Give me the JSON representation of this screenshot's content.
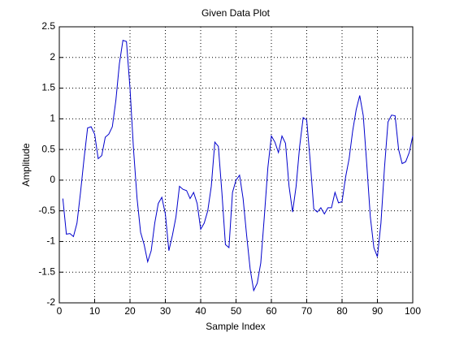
{
  "chart_data": {
    "type": "line",
    "title": "Given Data Plot",
    "x_label": "Sample Index",
    "y_label": "Amplitude",
    "x": [
      1,
      2,
      3,
      4,
      5,
      6,
      7,
      8,
      9,
      10,
      11,
      12,
      13,
      14,
      15,
      16,
      17,
      18,
      19,
      20,
      21,
      22,
      23,
      24,
      25,
      26,
      27,
      28,
      29,
      30,
      31,
      32,
      33,
      34,
      35,
      36,
      37,
      38,
      39,
      40,
      41,
      42,
      43,
      44,
      45,
      46,
      47,
      48,
      49,
      50,
      51,
      52,
      53,
      54,
      55,
      56,
      57,
      58,
      59,
      60,
      61,
      62,
      63,
      64,
      65,
      66,
      67,
      68,
      69,
      70,
      71,
      72,
      73,
      74,
      75,
      76,
      77,
      78,
      79,
      80,
      81,
      82,
      83,
      84,
      85,
      86,
      87,
      88,
      89,
      90,
      91,
      92,
      93,
      94,
      95,
      96,
      97,
      98,
      99,
      100
    ],
    "series": [
      {
        "color": "#0000cc",
        "values": [
          -0.3,
          -0.88,
          -0.87,
          -0.92,
          -0.7,
          -0.2,
          0.35,
          0.85,
          0.87,
          0.75,
          0.35,
          0.4,
          0.7,
          0.75,
          0.87,
          1.3,
          1.9,
          2.28,
          2.26,
          1.5,
          0.5,
          -0.3,
          -0.85,
          -1.05,
          -1.33,
          -1.15,
          -0.7,
          -0.38,
          -0.28,
          -0.55,
          -1.15,
          -0.9,
          -0.6,
          -0.1,
          -0.15,
          -0.17,
          -0.3,
          -0.2,
          -0.38,
          -0.8,
          -0.7,
          -0.5,
          -0.1,
          0.62,
          0.55,
          -0.2,
          -1.05,
          -1.1,
          -0.2,
          0.0,
          0.08,
          -0.3,
          -0.9,
          -1.45,
          -1.8,
          -1.68,
          -1.35,
          -0.6,
          0.2,
          0.72,
          0.62,
          0.45,
          0.72,
          0.6,
          -0.1,
          -0.52,
          -0.1,
          0.55,
          1.02,
          0.98,
          0.3,
          -0.47,
          -0.52,
          -0.45,
          -0.55,
          -0.45,
          -0.45,
          -0.2,
          -0.37,
          -0.35,
          0.05,
          0.35,
          0.8,
          1.15,
          1.38,
          1.05,
          0.25,
          -0.6,
          -1.1,
          -1.25,
          -0.7,
          0.2,
          0.95,
          1.06,
          1.05,
          0.5,
          0.27,
          0.3,
          0.45,
          0.72
        ]
      }
    ],
    "xlim": [
      0,
      100
    ],
    "xticks": [
      0,
      10,
      20,
      30,
      40,
      50,
      60,
      70,
      80,
      90,
      100
    ],
    "ylim": [
      -2,
      2.5
    ],
    "yticks": [
      -2,
      -1.5,
      -1,
      -0.5,
      0,
      0.5,
      1,
      1.5,
      2,
      2.5
    ],
    "grid": true
  }
}
